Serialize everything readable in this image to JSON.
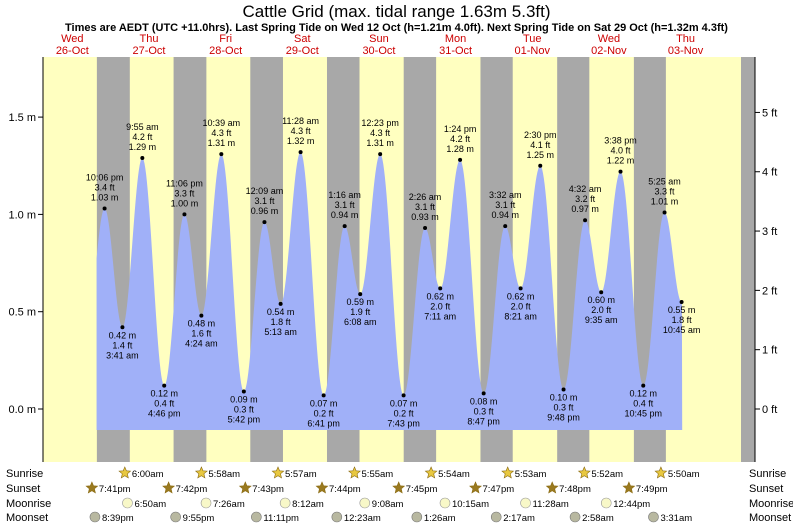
{
  "title": "Cattle Grid (max. tidal range 1.63m 5.3ft)",
  "subtitle": "Times are AEDT (UTC +11.0hrs). Last Spring Tide on Wed 12 Oct (h=1.21m 4.0ft). Next Spring Tide on Sat 29 Oct (h=1.32m 4.3ft)",
  "colors": {
    "day": "#ffffc0",
    "night": "#a8a8a8",
    "water": "#a0b0f8",
    "day_label": "#cc0000",
    "sun_icon": "#e8c840",
    "moon_icon": "#f8f8c8"
  },
  "chart_data": {
    "type": "area",
    "x_unit": "hours from 00:00 Wed 26 Oct (AEDT)",
    "xlim": [
      0,
      200
    ],
    "ylim": [
      -0.1,
      1.65
    ],
    "y_ticks_m": [
      "0.0 m",
      "0.5 m",
      "1.0 m",
      "1.5 m"
    ],
    "y_ticks_ft": [
      "0 ft",
      "1 ft",
      "2 ft",
      "3 ft",
      "4 ft",
      "5 ft"
    ],
    "grid": false,
    "days": [
      {
        "name": "Wed",
        "date": "26-Oct"
      },
      {
        "name": "Thu",
        "date": "27-Oct"
      },
      {
        "name": "Fri",
        "date": "28-Oct"
      },
      {
        "name": "Sat",
        "date": "29-Oct"
      },
      {
        "name": "Sun",
        "date": "30-Oct"
      },
      {
        "name": "Mon",
        "date": "31-Oct"
      },
      {
        "name": "Tue",
        "date": "01-Nov"
      },
      {
        "name": "Wed",
        "date": "02-Nov"
      },
      {
        "name": "Thu",
        "date": "03-Nov"
      }
    ],
    "tides": [
      {
        "type": "high",
        "time": "10:06 pm",
        "m": 1.03,
        "m_label": "1.03 m",
        "ft_label": "3.4 ft"
      },
      {
        "type": "low",
        "time": "3:41 am",
        "m": 0.42,
        "m_label": "0.42 m",
        "ft_label": "1.4 ft"
      },
      {
        "type": "high",
        "time": "9:55 am",
        "m": 1.29,
        "m_label": "1.29 m",
        "ft_label": "4.2 ft"
      },
      {
        "type": "low",
        "time": "4:46 pm",
        "m": 0.12,
        "m_label": "0.12 m",
        "ft_label": "0.4 ft"
      },
      {
        "type": "high",
        "time": "11:06 pm",
        "m": 1.0,
        "m_label": "1.00 m",
        "ft_label": "3.3 ft"
      },
      {
        "type": "low",
        "time": "4:24 am",
        "m": 0.48,
        "m_label": "0.48 m",
        "ft_label": "1.6 ft"
      },
      {
        "type": "high",
        "time": "10:39 am",
        "m": 1.31,
        "m_label": "1.31 m",
        "ft_label": "4.3 ft"
      },
      {
        "type": "low",
        "time": "5:42 pm",
        "m": 0.09,
        "m_label": "0.09 m",
        "ft_label": "0.3 ft"
      },
      {
        "type": "high",
        "time": "12:09 am",
        "m": 0.96,
        "m_label": "0.96 m",
        "ft_label": "3.1 ft"
      },
      {
        "type": "low",
        "time": "5:13 am",
        "m": 0.54,
        "m_label": "0.54 m",
        "ft_label": "1.8 ft"
      },
      {
        "type": "high",
        "time": "11:28 am",
        "m": 1.32,
        "m_label": "1.32 m",
        "ft_label": "4.3 ft"
      },
      {
        "type": "low",
        "time": "6:41 pm",
        "m": 0.07,
        "m_label": "0.07 m",
        "ft_label": "0.2 ft"
      },
      {
        "type": "high",
        "time": "1:16 am",
        "m": 0.94,
        "m_label": "0.94 m",
        "ft_label": "3.1 ft"
      },
      {
        "type": "low",
        "time": "6:08 am",
        "m": 0.59,
        "m_label": "0.59 m",
        "ft_label": "1.9 ft"
      },
      {
        "type": "high",
        "time": "12:23 pm",
        "m": 1.31,
        "m_label": "1.31 m",
        "ft_label": "4.3 ft"
      },
      {
        "type": "low",
        "time": "7:43 pm",
        "m": 0.07,
        "m_label": "0.07 m",
        "ft_label": "0.2 ft"
      },
      {
        "type": "high",
        "time": "2:26 am",
        "m": 0.93,
        "m_label": "0.93 m",
        "ft_label": "3.1 ft"
      },
      {
        "type": "low",
        "time": "7:11 am",
        "m": 0.62,
        "m_label": "0.62 m",
        "ft_label": "2.0 ft"
      },
      {
        "type": "high",
        "time": "1:24 pm",
        "m": 1.28,
        "m_label": "1.28 m",
        "ft_label": "4.2 ft"
      },
      {
        "type": "low",
        "time": "8:47 pm",
        "m": 0.08,
        "m_label": "0.08 m",
        "ft_label": "0.3 ft"
      },
      {
        "type": "high",
        "time": "3:32 am",
        "m": 0.94,
        "m_label": "0.94 m",
        "ft_label": "3.1 ft"
      },
      {
        "type": "low",
        "time": "8:21 am",
        "m": 0.62,
        "m_label": "0.62 m",
        "ft_label": "2.0 ft"
      },
      {
        "type": "high",
        "time": "2:30 pm",
        "m": 1.25,
        "m_label": "1.25 m",
        "ft_label": "4.1 ft"
      },
      {
        "type": "low",
        "time": "9:48 pm",
        "m": 0.1,
        "m_label": "0.10 m",
        "ft_label": "0.3 ft"
      },
      {
        "type": "high",
        "time": "4:32 am",
        "m": 0.97,
        "m_label": "0.97 m",
        "ft_label": "3.2 ft"
      },
      {
        "type": "low",
        "time": "9:35 am",
        "m": 0.6,
        "m_label": "0.60 m",
        "ft_label": "2.0 ft"
      },
      {
        "type": "high",
        "time": "3:38 pm",
        "m": 1.22,
        "m_label": "1.22 m",
        "ft_label": "4.0 ft"
      },
      {
        "type": "low",
        "time": "10:45 pm",
        "m": 0.12,
        "m_label": "0.12 m",
        "ft_label": "0.4 ft"
      },
      {
        "type": "high",
        "time": "5:25 am",
        "m": 1.01,
        "m_label": "1.01 m",
        "ft_label": "3.3 ft"
      },
      {
        "type": "low",
        "time": "10:45 am",
        "m": 0.55,
        "m_label": "0.55 m",
        "ft_label": "1.8 ft"
      }
    ],
    "astro_rows": [
      "Sunrise",
      "Sunset",
      "Moonrise",
      "Moonset"
    ],
    "sunrise": [
      "6:00am",
      "5:58am",
      "5:57am",
      "5:55am",
      "5:54am",
      "5:53am",
      "5:52am",
      "5:50am"
    ],
    "sunset": [
      "7:41pm",
      "7:42pm",
      "7:43pm",
      "7:44pm",
      "7:45pm",
      "7:47pm",
      "7:48pm",
      "7:49pm"
    ],
    "moonrise": [
      "6:50am",
      "7:26am",
      "8:12am",
      "9:08am",
      "10:15am",
      "11:28am",
      "12:44pm"
    ],
    "moonset": [
      "8:39pm",
      "9:55pm",
      "11:11pm",
      "12:23am",
      "1:26am",
      "2:17am",
      "2:58am",
      "3:31am"
    ]
  }
}
